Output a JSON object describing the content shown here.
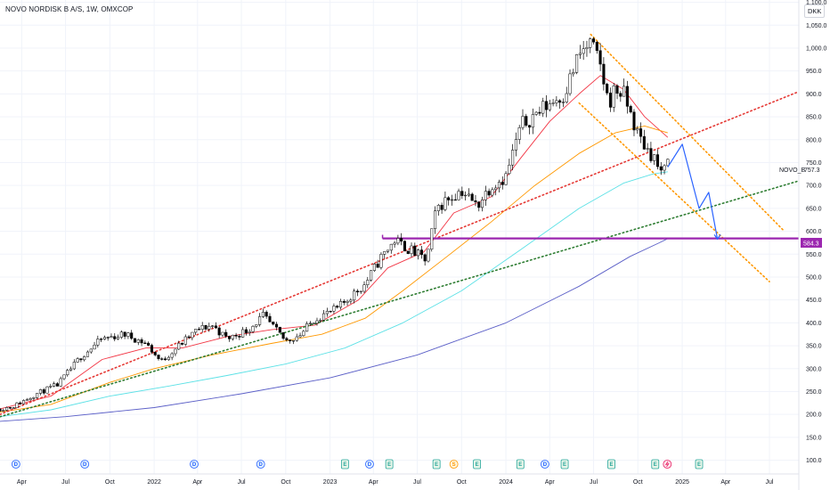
{
  "header": {
    "title": "NOVO NORDISK B A/S, 1W, OMXCOP",
    "currency": "DKK"
  },
  "symbol_label": "NOVO_B",
  "last_price_label": "757.3",
  "support_price_label": "584.3",
  "colors": {
    "candle_up": "#ffffff",
    "candle_down": "#000000",
    "candle_border": "#000000",
    "ma_short": "#f23645",
    "ma_mid": "#ff9800",
    "ma_long": "#5ce1e6",
    "ma_longest": "#5b5fc7",
    "support": "#9c27b0",
    "trend_red": "#e53935",
    "trend_green": "#2e7d32",
    "channel": "#ff9800",
    "projection": "#2962ff",
    "grid": "#f0f3fa"
  },
  "events": [
    {
      "kind": "D",
      "date": "2021-03-20"
    },
    {
      "kind": "D",
      "date": "2021-08-10"
    },
    {
      "kind": "D",
      "date": "2022-03-25"
    },
    {
      "kind": "D",
      "date": "2022-08-10"
    },
    {
      "kind": "E",
      "date": "2023-02-01"
    },
    {
      "kind": "D",
      "date": "2023-03-24"
    },
    {
      "kind": "E",
      "date": "2023-05-04"
    },
    {
      "kind": "E",
      "date": "2023-08-10"
    },
    {
      "kind": "S",
      "date": "2023-09-15"
    },
    {
      "kind": "E",
      "date": "2023-11-02"
    },
    {
      "kind": "E",
      "date": "2024-01-31"
    },
    {
      "kind": "D",
      "date": "2024-03-22"
    },
    {
      "kind": "E",
      "date": "2024-05-02"
    },
    {
      "kind": "E",
      "date": "2024-08-07"
    },
    {
      "kind": "E",
      "date": "2024-11-06"
    },
    {
      "kind": "Z",
      "date": "2024-12-01"
    },
    {
      "kind": "E",
      "date": "2025-02-05"
    }
  ],
  "chart_data": {
    "type": "candlestick",
    "title": "NOVO NORDISK B A/S, 1W, OMXCOP",
    "y_unit": "DKK",
    "ylim": [
      70,
      1105
    ],
    "xlim": [
      "2021-02-15",
      "2025-08-31"
    ],
    "y_ticks": [
      "100.0",
      "150.0",
      "200.0",
      "250.0",
      "300.0",
      "350.0",
      "400.0",
      "450.0",
      "500.0",
      "550.0",
      "600.0",
      "650.0",
      "700.0",
      "750.0",
      "800.0",
      "850.0",
      "900.0",
      "950.0",
      "1,000.0",
      "1,050.0",
      "1,100.0"
    ],
    "y_tick_values": [
      100,
      150,
      200,
      250,
      300,
      350,
      400,
      450,
      500,
      550,
      600,
      650,
      700,
      750,
      800,
      850,
      900,
      950,
      1000,
      1050,
      1100
    ],
    "x_ticks": [
      {
        "label": "Apr",
        "date": "2021-04-01"
      },
      {
        "label": "Jul",
        "date": "2021-07-01"
      },
      {
        "label": "Oct",
        "date": "2021-10-01"
      },
      {
        "label": "2022",
        "date": "2022-01-01"
      },
      {
        "label": "Apr",
        "date": "2022-04-01"
      },
      {
        "label": "Jul",
        "date": "2022-07-01"
      },
      {
        "label": "Oct",
        "date": "2022-10-01"
      },
      {
        "label": "2023",
        "date": "2023-01-01"
      },
      {
        "label": "Apr",
        "date": "2023-04-01"
      },
      {
        "label": "Jul",
        "date": "2023-07-01"
      },
      {
        "label": "Oct",
        "date": "2023-10-01"
      },
      {
        "label": "2024",
        "date": "2024-01-01"
      },
      {
        "label": "Apr",
        "date": "2024-04-01"
      },
      {
        "label": "Jul",
        "date": "2024-07-01"
      },
      {
        "label": "Oct",
        "date": "2024-10-01"
      },
      {
        "label": "2025",
        "date": "2025-01-01"
      },
      {
        "label": "Apr",
        "date": "2025-04-01"
      },
      {
        "label": "Jul",
        "date": "2025-07-01"
      }
    ],
    "price_anchors": [
      [
        "2021-02-15",
        212
      ],
      [
        "2021-03-15",
        218
      ],
      [
        "2021-05-01",
        245
      ],
      [
        "2021-06-15",
        265
      ],
      [
        "2021-08-01",
        325
      ],
      [
        "2021-09-15",
        365
      ],
      [
        "2021-11-01",
        375
      ],
      [
        "2021-12-15",
        355
      ],
      [
        "2022-01-15",
        315
      ],
      [
        "2022-02-15",
        345
      ],
      [
        "2022-04-01",
        385
      ],
      [
        "2022-05-01",
        395
      ],
      [
        "2022-06-01",
        365
      ],
      [
        "2022-07-15",
        385
      ],
      [
        "2022-08-15",
        415
      ],
      [
        "2022-10-01",
        360
      ],
      [
        "2022-11-01",
        375
      ],
      [
        "2022-12-01",
        410
      ],
      [
        "2023-01-15",
        430
      ],
      [
        "2023-02-15",
        460
      ],
      [
        "2023-03-15",
        485
      ],
      [
        "2023-04-15",
        540
      ],
      [
        "2023-05-15",
        580
      ],
      [
        "2023-06-15",
        560
      ],
      [
        "2023-07-20",
        535
      ],
      [
        "2023-08-10",
        650
      ],
      [
        "2023-09-01",
        670
      ],
      [
        "2023-10-01",
        690
      ],
      [
        "2023-11-01",
        655
      ],
      [
        "2023-12-01",
        700
      ],
      [
        "2024-01-01",
        720
      ],
      [
        "2024-02-01",
        830
      ],
      [
        "2024-03-01",
        855
      ],
      [
        "2024-04-01",
        880
      ],
      [
        "2024-05-01",
        900
      ],
      [
        "2024-06-01",
        985
      ],
      [
        "2024-06-25",
        1010
      ],
      [
        "2024-07-15",
        960
      ],
      [
        "2024-08-01",
        880
      ],
      [
        "2024-08-15",
        910
      ],
      [
        "2024-09-01",
        900
      ],
      [
        "2024-10-01",
        810
      ],
      [
        "2024-10-20",
        780
      ],
      [
        "2024-11-05",
        760
      ],
      [
        "2024-11-20",
        715
      ],
      [
        "2024-12-02",
        757.3
      ]
    ],
    "moving_averages": [
      {
        "key": "ma_short",
        "points": [
          [
            "2021-02-15",
            212
          ],
          [
            "2021-06-01",
            240
          ],
          [
            "2021-09-15",
            320
          ],
          [
            "2021-12-15",
            345
          ],
          [
            "2022-03-01",
            345
          ],
          [
            "2022-06-01",
            370
          ],
          [
            "2022-09-01",
            385
          ],
          [
            "2022-12-01",
            395
          ],
          [
            "2023-03-01",
            450
          ],
          [
            "2023-05-01",
            520
          ],
          [
            "2023-07-15",
            555
          ],
          [
            "2023-09-15",
            640
          ],
          [
            "2023-12-01",
            675
          ],
          [
            "2024-02-01",
            760
          ],
          [
            "2024-04-01",
            840
          ],
          [
            "2024-06-01",
            900
          ],
          [
            "2024-07-15",
            940
          ],
          [
            "2024-09-01",
            910
          ],
          [
            "2024-10-15",
            850
          ],
          [
            "2024-12-02",
            805
          ]
        ]
      },
      {
        "key": "ma_mid",
        "points": [
          [
            "2021-02-15",
            205
          ],
          [
            "2021-06-01",
            222
          ],
          [
            "2021-10-01",
            270
          ],
          [
            "2022-01-01",
            300
          ],
          [
            "2022-05-01",
            330
          ],
          [
            "2022-09-01",
            355
          ],
          [
            "2022-12-15",
            375
          ],
          [
            "2023-03-15",
            410
          ],
          [
            "2023-06-01",
            470
          ],
          [
            "2023-09-01",
            545
          ],
          [
            "2023-12-01",
            620
          ],
          [
            "2024-03-01",
            700
          ],
          [
            "2024-06-01",
            770
          ],
          [
            "2024-08-15",
            815
          ],
          [
            "2024-10-15",
            830
          ],
          [
            "2024-12-02",
            815
          ]
        ]
      },
      {
        "key": "ma_long",
        "points": [
          [
            "2021-02-15",
            195
          ],
          [
            "2021-06-01",
            210
          ],
          [
            "2021-10-01",
            240
          ],
          [
            "2022-02-01",
            262
          ],
          [
            "2022-06-01",
            285
          ],
          [
            "2022-10-01",
            310
          ],
          [
            "2023-02-01",
            345
          ],
          [
            "2023-06-01",
            400
          ],
          [
            "2023-10-01",
            470
          ],
          [
            "2024-02-01",
            560
          ],
          [
            "2024-06-01",
            650
          ],
          [
            "2024-09-01",
            705
          ],
          [
            "2024-11-01",
            725
          ],
          [
            "2024-12-02",
            730
          ]
        ]
      },
      {
        "key": "ma_longest",
        "points": [
          [
            "2021-02-15",
            185
          ],
          [
            "2021-07-01",
            195
          ],
          [
            "2022-01-01",
            215
          ],
          [
            "2022-07-01",
            245
          ],
          [
            "2023-01-01",
            280
          ],
          [
            "2023-07-01",
            330
          ],
          [
            "2024-01-01",
            400
          ],
          [
            "2024-06-01",
            480
          ],
          [
            "2024-09-15",
            545
          ],
          [
            "2024-11-15",
            575
          ],
          [
            "2024-12-02",
            584
          ]
        ]
      }
    ],
    "support_level": 584.3,
    "support_from": "2023-04-20",
    "trendlines": [
      {
        "key": "trend_red",
        "from": [
          "2021-02-15",
          200
        ],
        "to": [
          "2025-08-31",
          905
        ]
      },
      {
        "key": "trend_green",
        "from": [
          "2021-02-15",
          195
        ],
        "to": [
          "2025-08-31",
          710
        ]
      }
    ],
    "channel_lines": [
      {
        "from": [
          "2024-06-25",
          1030
        ],
        "to": [
          "2025-08-01",
          600
        ]
      },
      {
        "from": [
          "2024-06-01",
          880
        ],
        "to": [
          "2025-07-01",
          490
        ]
      }
    ],
    "projection_path": [
      [
        "2024-12-02",
        740
      ],
      [
        "2025-01-01",
        790
      ],
      [
        "2025-02-05",
        650
      ],
      [
        "2025-02-25",
        685
      ],
      [
        "2025-03-15",
        583
      ]
    ]
  }
}
